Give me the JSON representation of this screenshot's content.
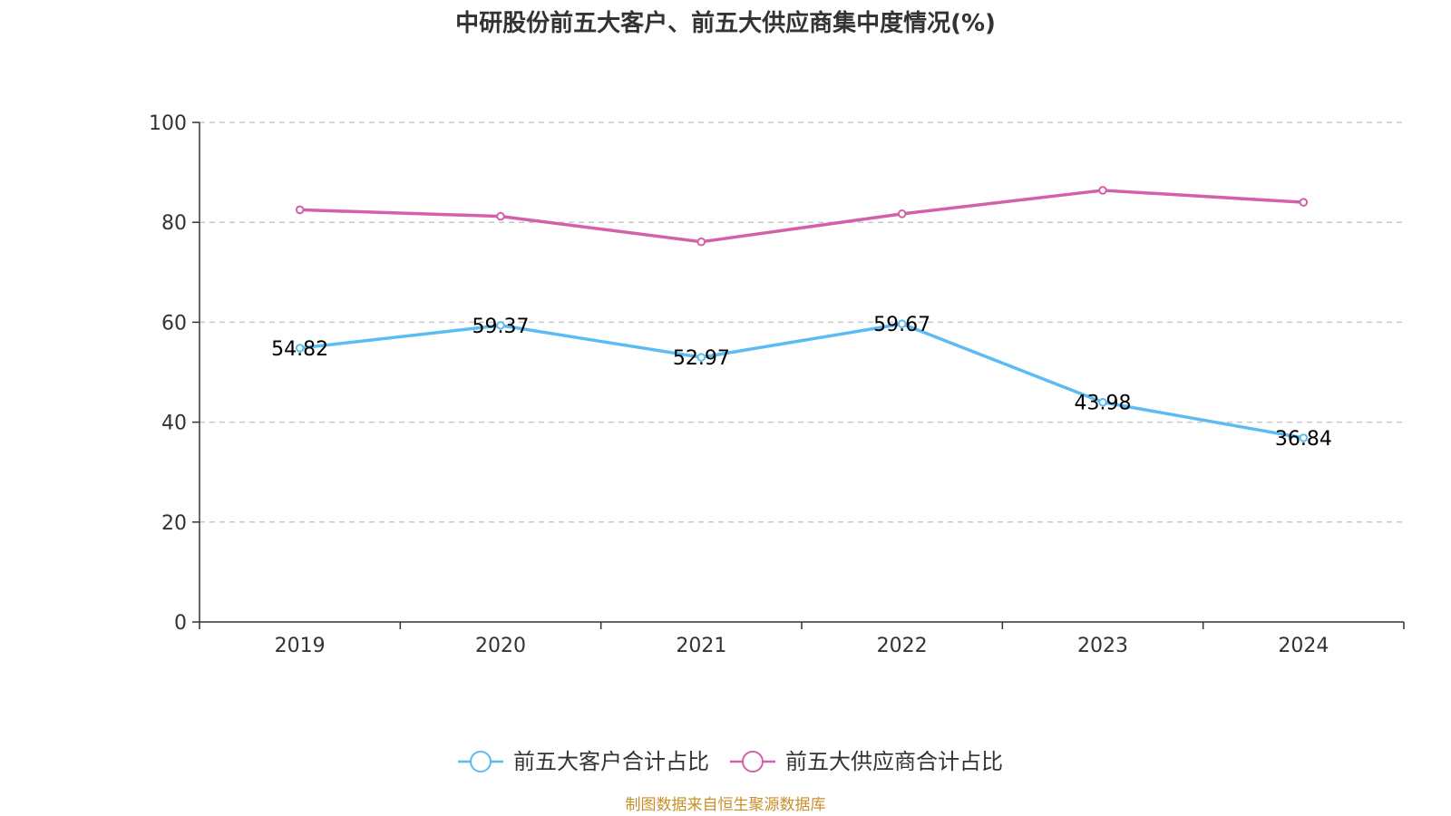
{
  "chart_data": {
    "type": "line",
    "title": "中研股份前五大客户、前五大供应商集中度情况(%)",
    "categories": [
      "2019",
      "2020",
      "2021",
      "2022",
      "2023",
      "2024"
    ],
    "ylim": [
      0,
      100
    ],
    "yticks": [
      0,
      20,
      40,
      60,
      80,
      100
    ],
    "grid": true,
    "legend_position": "bottom",
    "series": [
      {
        "name": "前五大客户合计占比",
        "color": "#5bbcf2",
        "values": [
          54.82,
          59.37,
          52.97,
          59.67,
          43.98,
          36.84
        ],
        "labels": [
          "54.82",
          "59.37",
          "52.97",
          "59.67",
          "43.98",
          "36.84"
        ],
        "show_labels": true
      },
      {
        "name": "前五大供应商合计占比",
        "color": "#d261a9",
        "values": [
          82.5,
          81.2,
          76.1,
          81.7,
          86.4,
          84.0
        ],
        "show_labels": false
      }
    ],
    "source": "制图数据来自恒生聚源数据库",
    "source_color": "#c9902a"
  }
}
